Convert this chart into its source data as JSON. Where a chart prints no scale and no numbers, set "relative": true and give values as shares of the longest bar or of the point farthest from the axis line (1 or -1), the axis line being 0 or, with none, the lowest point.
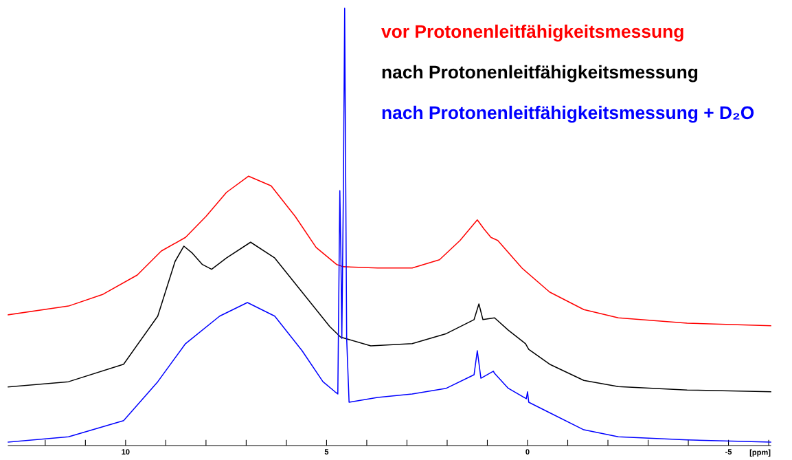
{
  "chart_data": {
    "type": "line",
    "relative": true,
    "xlabel": "[ppm]",
    "xlim": [
      12.92,
      -6.05
    ],
    "xticks": [
      {
        "value": 12,
        "label": null
      },
      {
        "value": 11,
        "label": null
      },
      10,
      {
        "value": 9,
        "label": null
      },
      {
        "value": 8,
        "label": null
      },
      {
        "value": 7,
        "label": null
      },
      {
        "value": 6,
        "label": null
      },
      5,
      {
        "value": 4,
        "label": null
      },
      {
        "value": 3,
        "label": null
      },
      {
        "value": 2,
        "label": null
      },
      {
        "value": 1,
        "label": null
      },
      0,
      {
        "value": -1,
        "label": null
      },
      {
        "value": -2,
        "label": null
      },
      {
        "value": -3,
        "label": null
      },
      {
        "value": -4,
        "label": null
      },
      -5,
      {
        "value": -6,
        "label": null
      }
    ],
    "legend": "top right",
    "grid": false,
    "marker": "none",
    "line_style": "solid",
    "series": [
      {
        "name": "vor Protonenleitfähigkeitsmessung",
        "color": "#ff0000",
        "x": [
          12.92,
          11.42,
          10.56,
          9.71,
          9.11,
          8.51,
          8.0,
          7.49,
          6.94,
          6.38,
          5.78,
          5.26,
          4.75,
          4.58,
          3.73,
          2.87,
          2.19,
          1.68,
          1.25,
          1.08,
          0.91,
          0.74,
          0.14,
          -0.55,
          -1.4,
          -2.26,
          -3.97,
          -6.05
        ],
        "values": [
          0.299,
          0.319,
          0.346,
          0.39,
          0.445,
          0.476,
          0.524,
          0.579,
          0.616,
          0.594,
          0.524,
          0.453,
          0.414,
          0.409,
          0.406,
          0.406,
          0.425,
          0.469,
          0.516,
          0.495,
          0.476,
          0.469,
          0.406,
          0.351,
          0.311,
          0.292,
          0.28,
          0.274
        ]
      },
      {
        "name": "nach Protonenleitfähigkeitsmessung",
        "color": "#000000",
        "x": [
          12.92,
          11.42,
          10.05,
          9.2,
          8.77,
          8.55,
          8.34,
          8.09,
          7.86,
          7.49,
          6.89,
          6.29,
          5.61,
          4.92,
          4.65,
          3.9,
          2.87,
          2.02,
          1.33,
          1.21,
          1.11,
          0.82,
          0.48,
          0.05,
          -0.03,
          -0.55,
          -1.4,
          -2.26,
          -3.97,
          -6.05
        ],
        "values": [
          0.134,
          0.146,
          0.186,
          0.296,
          0.421,
          0.456,
          0.44,
          0.414,
          0.403,
          0.429,
          0.465,
          0.429,
          0.351,
          0.272,
          0.248,
          0.228,
          0.233,
          0.256,
          0.288,
          0.324,
          0.288,
          0.292,
          0.264,
          0.233,
          0.22,
          0.186,
          0.149,
          0.135,
          0.127,
          0.123
        ]
      },
      {
        "name": "nach Protonenleitfähigkeitsmessung + D₂O",
        "color": "#0000ff",
        "x": [
          12.92,
          11.42,
          10.05,
          9.2,
          8.51,
          7.66,
          6.97,
          6.29,
          5.61,
          5.09,
          4.79,
          4.72,
          4.67,
          4.64,
          4.62,
          4.58,
          4.55,
          4.5,
          4.44,
          3.73,
          2.87,
          2.02,
          1.33,
          1.25,
          1.16,
          0.85,
          0.82,
          0.48,
          0.03,
          0.0,
          -0.03,
          -0.55,
          -1.4,
          -2.26,
          -3.97,
          -6.05
        ],
        "values": [
          0.008,
          0.02,
          0.057,
          0.146,
          0.233,
          0.296,
          0.327,
          0.296,
          0.217,
          0.146,
          0.123,
          0.118,
          0.583,
          0.409,
          0.245,
          0.6,
          1.0,
          0.245,
          0.099,
          0.11,
          0.118,
          0.131,
          0.162,
          0.217,
          0.154,
          0.17,
          0.165,
          0.131,
          0.107,
          0.123,
          0.099,
          0.075,
          0.036,
          0.02,
          0.013,
          0.008
        ]
      }
    ]
  }
}
